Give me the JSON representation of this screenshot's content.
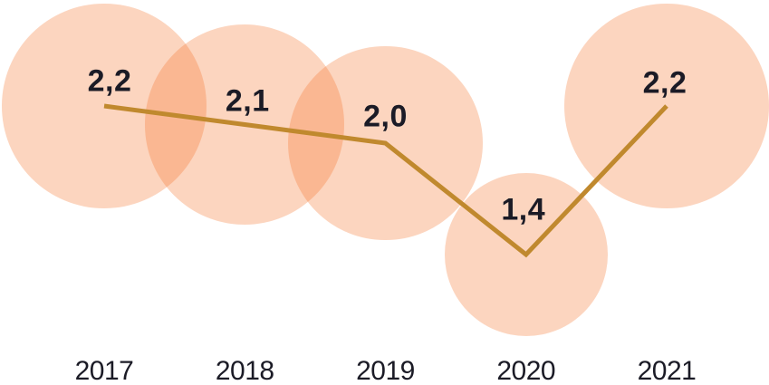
{
  "page": {
    "background": "#FFFFFF"
  },
  "chart_data": {
    "type": "bubble-line",
    "title": "",
    "xlabel": "",
    "ylabel": "",
    "categories": [
      "2017",
      "2018",
      "2019",
      "2020",
      "2021"
    ],
    "values": [
      2.2,
      2.1,
      2.0,
      1.4,
      2.2
    ],
    "value_labels": [
      "2,2",
      "2,1",
      "2,0",
      "1,4",
      "2,2"
    ],
    "decimal_separator": ",",
    "legend": false,
    "grid": false,
    "y_axis_visible": false,
    "x_axis_tick_labels_only": true,
    "bubble_area_proportional_to_value": true,
    "colors": {
      "bubble_fill": "#F4732A",
      "bubble_opacity": 0.3,
      "line": "#C0892E",
      "value_label_text": "#1B1B26",
      "year_label_text": "#1B1B26",
      "background": "#FFFFFF"
    }
  }
}
